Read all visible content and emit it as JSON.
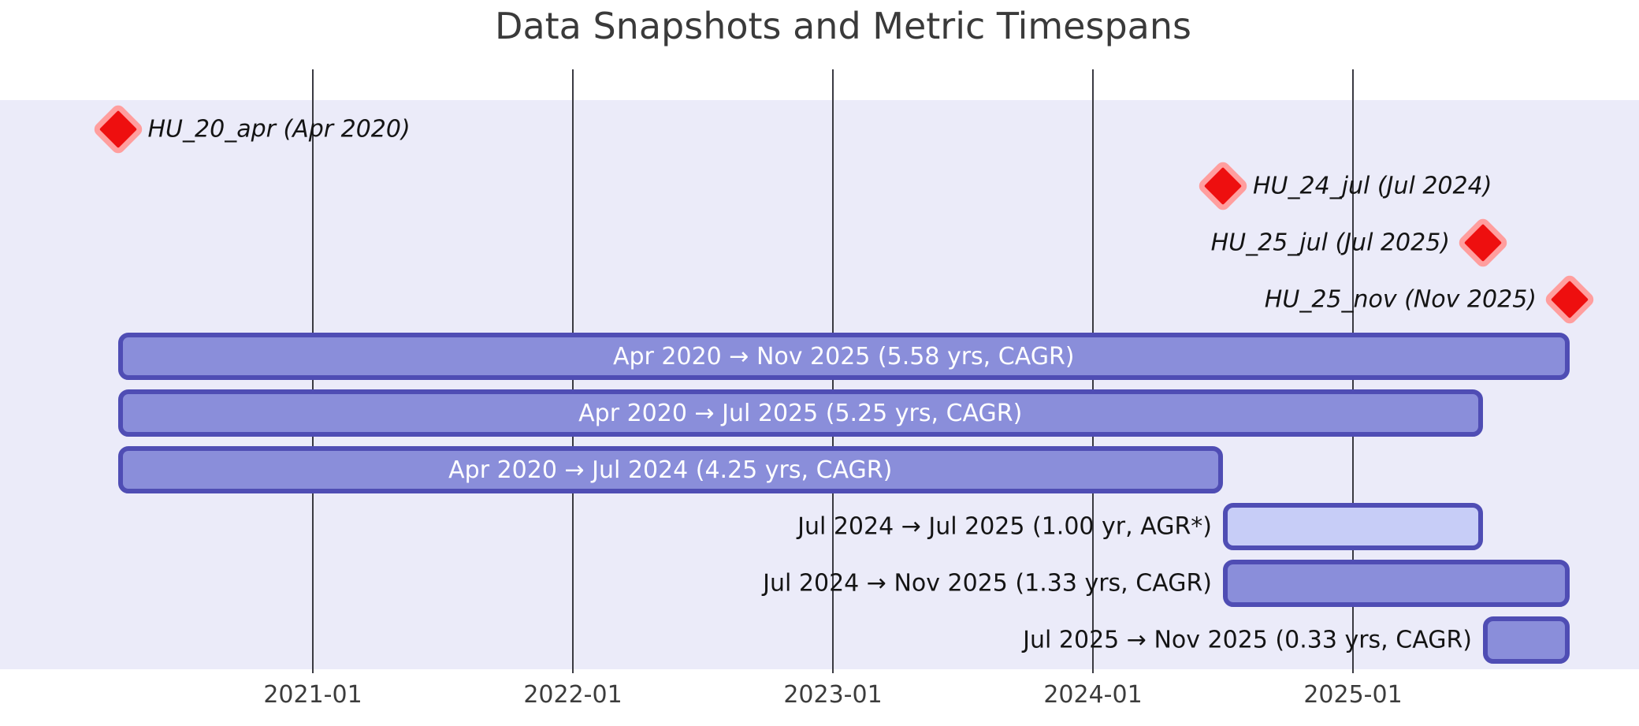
{
  "title": "Data Snapshots and Metric Timespans",
  "colors": {
    "plot_background": "#ebebf9",
    "gridline": "#3a3a42",
    "bar_fill_medium": "#8a8eda",
    "bar_fill_light": "#c7cdf7",
    "bar_border": "#4f4db4",
    "bar_text": "#ffffff",
    "marker_fill": "#ee0f0f",
    "marker_edge": "#ff9e9e",
    "label_text": "#141414",
    "tick_text": "#3c3c3c",
    "title_text": "#3a3a3a"
  },
  "chart_data": {
    "type": "timeline",
    "title": "Data Snapshots and Metric Timespans",
    "x_axis": {
      "tick_labels": [
        "2021-01",
        "2022-01",
        "2023-01",
        "2024-01",
        "2025-01"
      ],
      "tick_years": [
        2021.0,
        2022.0,
        2023.0,
        2024.0,
        2025.0
      ],
      "range_years": [
        2020.1,
        2026.1
      ],
      "grid": true
    },
    "snapshots": [
      {
        "name": "HU_20_apr",
        "label": "HU_20_apr (Apr 2020)",
        "date": "Apr 2020",
        "year": 2020.25,
        "row": 0,
        "label_side": "right"
      },
      {
        "name": "HU_24_jul",
        "label": "HU_24_jul (Jul 2024)",
        "date": "Jul 2024",
        "year": 2024.5,
        "row": 1,
        "label_side": "right"
      },
      {
        "name": "HU_25_jul",
        "label": "HU_25_jul (Jul 2025)",
        "date": "Jul 2025",
        "year": 2025.5,
        "row": 2,
        "label_side": "left"
      },
      {
        "name": "HU_25_nov",
        "label": "HU_25_nov (Nov 2025)",
        "date": "Nov 2025",
        "year": 2025.8333,
        "row": 3,
        "label_side": "left"
      }
    ],
    "spans": [
      {
        "label": "Apr 2020 → Nov 2025 (5.58 yrs, CAGR)",
        "start": "Apr 2020",
        "end": "Nov 2025",
        "start_year": 2020.25,
        "end_year": 2025.8333,
        "duration_yrs": 5.58,
        "metric": "CAGR",
        "row": 4,
        "fill": "medium",
        "label_placement": "inside"
      },
      {
        "label": "Apr 2020 → Jul 2025 (5.25 yrs, CAGR)",
        "start": "Apr 2020",
        "end": "Jul 2025",
        "start_year": 2020.25,
        "end_year": 2025.5,
        "duration_yrs": 5.25,
        "metric": "CAGR",
        "row": 5,
        "fill": "medium",
        "label_placement": "inside"
      },
      {
        "label": "Apr 2020 → Jul 2024 (4.25 yrs, CAGR)",
        "start": "Apr 2020",
        "end": "Jul 2024",
        "start_year": 2020.25,
        "end_year": 2024.5,
        "duration_yrs": 4.25,
        "metric": "CAGR",
        "row": 6,
        "fill": "medium",
        "label_placement": "inside"
      },
      {
        "label": "Jul 2024 → Jul 2025 (1.00 yr, AGR*)",
        "start": "Jul 2024",
        "end": "Jul 2025",
        "start_year": 2024.5,
        "end_year": 2025.5,
        "duration_yrs": 1.0,
        "metric": "AGR*",
        "row": 7,
        "fill": "light",
        "label_placement": "outside-left"
      },
      {
        "label": "Jul 2024 → Nov 2025 (1.33 yrs, CAGR)",
        "start": "Jul 2024",
        "end": "Nov 2025",
        "start_year": 2024.5,
        "end_year": 2025.8333,
        "duration_yrs": 1.33,
        "metric": "CAGR",
        "row": 8,
        "fill": "medium",
        "label_placement": "outside-left"
      },
      {
        "label": "Jul 2025 → Nov 2025 (0.33 yrs, CAGR)",
        "start": "Jul 2025",
        "end": "Nov 2025",
        "start_year": 2025.5,
        "end_year": 2025.8333,
        "duration_yrs": 0.33,
        "metric": "CAGR",
        "row": 9,
        "fill": "medium",
        "label_placement": "outside-left"
      }
    ]
  }
}
